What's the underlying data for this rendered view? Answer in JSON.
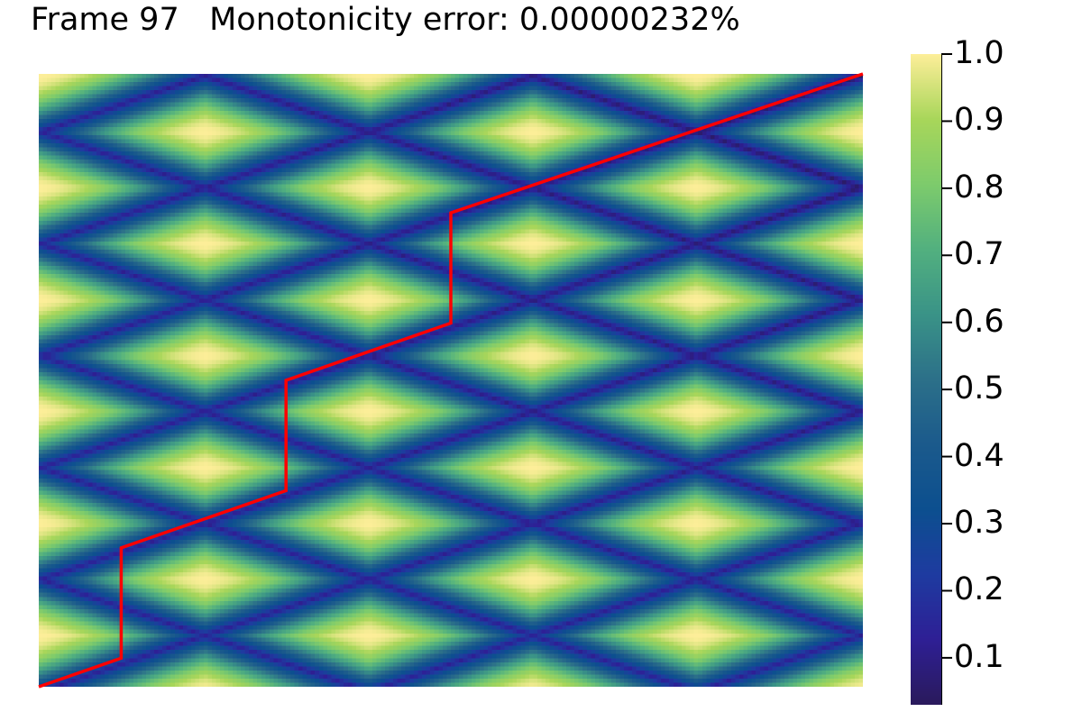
{
  "chart_data": {
    "type": "heatmap",
    "title_frame": "Frame 97",
    "title_error": "Monotonicity error: 0.00000232%",
    "grid_size": {
      "cols": 200,
      "rows": 150
    },
    "colorbar": {
      "range": [
        0.03,
        1.0
      ],
      "ticks": [
        0.1,
        0.2,
        0.3,
        0.4,
        0.5,
        0.6,
        0.7,
        0.8,
        0.9,
        1.0
      ],
      "tick_labels": [
        "0.1",
        "0.2",
        "0.3",
        "0.4",
        "0.5",
        "0.6",
        "0.7",
        "0.8",
        "0.9",
        "1.0"
      ]
    },
    "colormap": [
      "#2a1a5c",
      "#2e1f95",
      "#1e3ba0",
      "#0c4f8f",
      "#1b5a8c",
      "#2c7089",
      "#3a9387",
      "#52b07f",
      "#7dcb6c",
      "#a8d65a",
      "#fdee99"
    ],
    "path": {
      "color": "#ff0000",
      "points": [
        [
          0,
          0
        ],
        [
          20,
          7
        ],
        [
          20,
          34
        ],
        [
          60,
          48
        ],
        [
          60,
          75
        ],
        [
          100,
          89
        ],
        [
          100,
          116
        ],
        [
          200,
          150
        ]
      ]
    },
    "grid": false,
    "axes_visible": false
  }
}
